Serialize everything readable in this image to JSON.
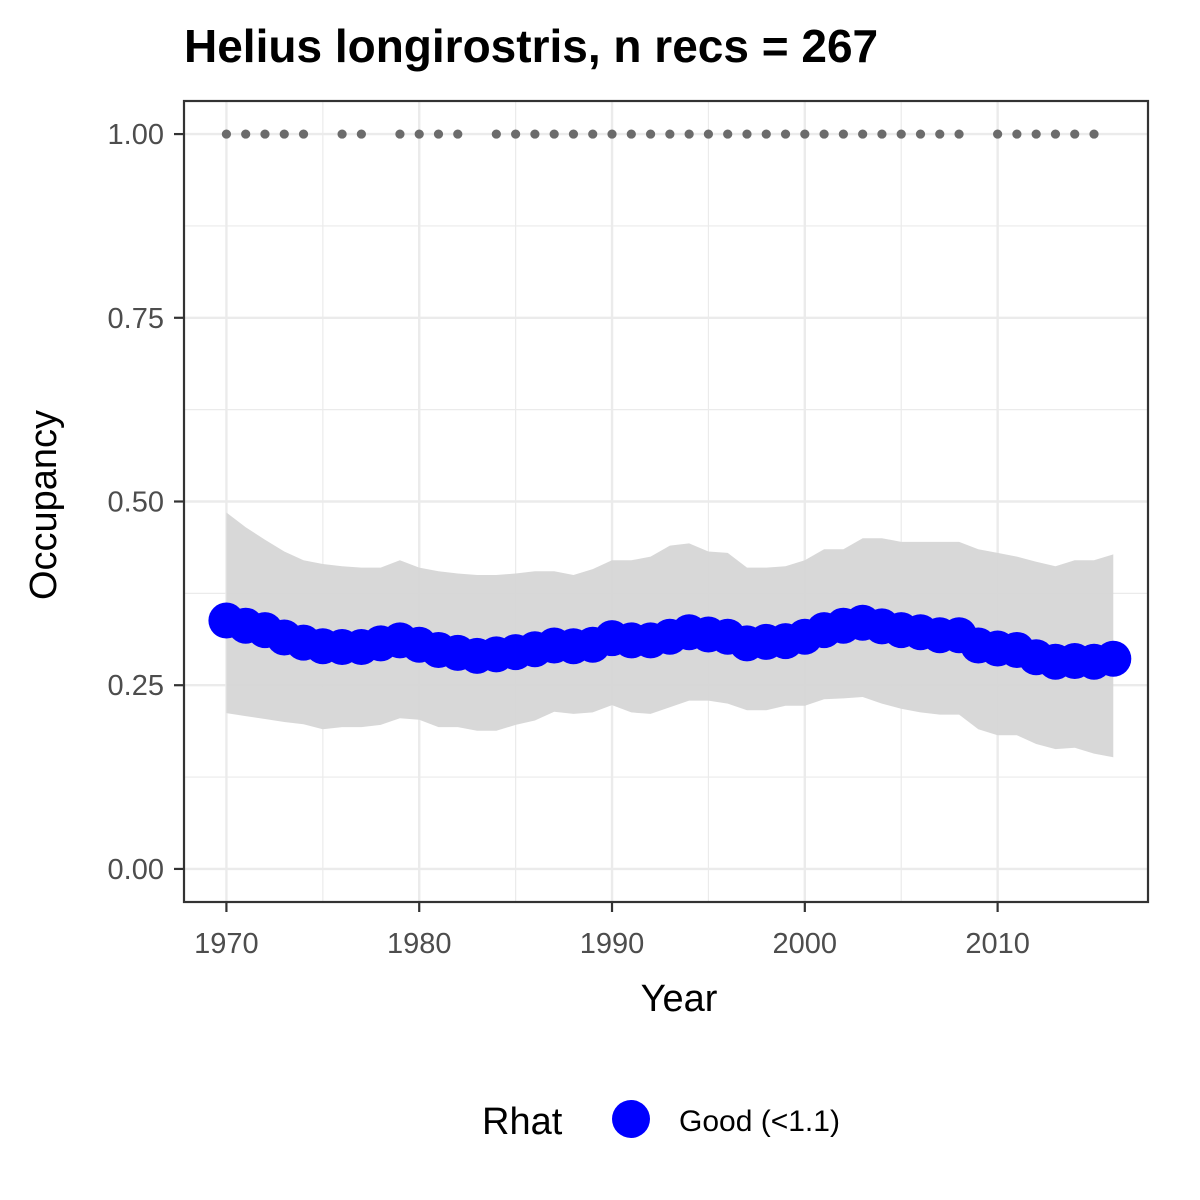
{
  "chart_data": {
    "type": "line",
    "title": "Helius longirostris, n recs = 267",
    "xlabel": "Year",
    "ylabel": "Occupancy",
    "xlim": [
      1967.8,
      2017.8
    ],
    "ylim": [
      -0.045,
      1.045
    ],
    "x_ticks": [
      1970,
      1980,
      1990,
      2000,
      2010
    ],
    "x_tick_labels": [
      "1970",
      "1980",
      "1990",
      "2000",
      "2010"
    ],
    "y_ticks": [
      0.0,
      0.25,
      0.5,
      0.75,
      1.0
    ],
    "y_tick_labels": [
      "0.00",
      "0.25",
      "0.50",
      "0.75",
      "1.00"
    ],
    "grid": true,
    "legend": {
      "title": "Rhat",
      "position": "bottom",
      "entries": [
        {
          "label": "Good (<1.1)",
          "color": "#0000ff"
        }
      ]
    },
    "colors": {
      "estimate": "#0000ff",
      "ribbon": "#d6d6d6",
      "records": "#6b6b6b"
    },
    "series": [
      {
        "x": [
          1970,
          1971,
          1972,
          1973,
          1974,
          1975,
          1976,
          1977,
          1978,
          1979,
          1980,
          1981,
          1982,
          1983,
          1984,
          1985,
          1986,
          1987,
          1988,
          1989,
          1990,
          1991,
          1992,
          1993,
          1994,
          1995,
          1996,
          1997,
          1998,
          1999,
          2000,
          2001,
          2002,
          2003,
          2004,
          2005,
          2006,
          2007,
          2008,
          2009,
          2010,
          2011,
          2012,
          2013,
          2014,
          2015,
          2016
        ],
        "y": [
          0.338,
          0.331,
          0.325,
          0.315,
          0.308,
          0.303,
          0.302,
          0.302,
          0.307,
          0.311,
          0.305,
          0.298,
          0.294,
          0.29,
          0.292,
          0.295,
          0.299,
          0.304,
          0.303,
          0.305,
          0.314,
          0.311,
          0.311,
          0.316,
          0.322,
          0.319,
          0.316,
          0.307,
          0.309,
          0.31,
          0.316,
          0.325,
          0.331,
          0.335,
          0.33,
          0.325,
          0.322,
          0.318,
          0.318,
          0.304,
          0.3,
          0.298,
          0.288,
          0.282,
          0.283,
          0.282,
          0.286
        ],
        "lower": [
          0.212,
          0.208,
          0.204,
          0.2,
          0.197,
          0.19,
          0.193,
          0.193,
          0.196,
          0.205,
          0.203,
          0.193,
          0.193,
          0.188,
          0.188,
          0.196,
          0.202,
          0.214,
          0.211,
          0.213,
          0.223,
          0.213,
          0.211,
          0.22,
          0.229,
          0.229,
          0.225,
          0.216,
          0.216,
          0.222,
          0.222,
          0.231,
          0.232,
          0.234,
          0.225,
          0.218,
          0.213,
          0.21,
          0.21,
          0.19,
          0.182,
          0.182,
          0.17,
          0.163,
          0.165,
          0.157,
          0.152
        ],
        "upper": [
          0.485,
          0.465,
          0.448,
          0.432,
          0.42,
          0.415,
          0.412,
          0.41,
          0.41,
          0.42,
          0.41,
          0.405,
          0.402,
          0.4,
          0.4,
          0.402,
          0.405,
          0.405,
          0.4,
          0.408,
          0.42,
          0.42,
          0.425,
          0.44,
          0.443,
          0.432,
          0.43,
          0.41,
          0.41,
          0.412,
          0.42,
          0.435,
          0.435,
          0.45,
          0.45,
          0.445,
          0.445,
          0.445,
          0.445,
          0.435,
          0.43,
          0.425,
          0.418,
          0.412,
          0.42,
          0.42,
          0.428
        ]
      }
    ],
    "record_years": [
      1970,
      1971,
      1972,
      1973,
      1974,
      1976,
      1977,
      1979,
      1980,
      1981,
      1982,
      1984,
      1985,
      1986,
      1987,
      1988,
      1989,
      1990,
      1991,
      1992,
      1993,
      1994,
      1995,
      1996,
      1997,
      1998,
      1999,
      2000,
      2001,
      2002,
      2003,
      2004,
      2005,
      2006,
      2007,
      2008,
      2010,
      2011,
      2012,
      2013,
      2014,
      2015
    ],
    "record_value": 1.0
  }
}
